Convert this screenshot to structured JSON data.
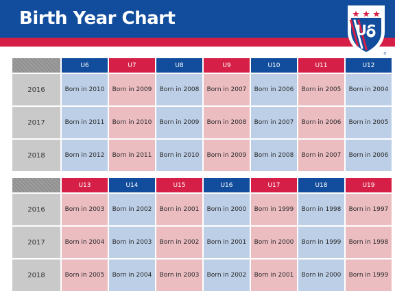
{
  "header": {
    "title": "Birth Year Chart"
  },
  "colors": {
    "header_blue": "#114d9c",
    "accent_red": "#d61f46",
    "cell_blue": "#bccfe7",
    "cell_red": "#ebbcc0",
    "year_gray": "#c9c9c9"
  },
  "crest": {
    "logo_text": "US",
    "icon": "us-soccer-crest-icon"
  },
  "tables": [
    {
      "columns": [
        "U6",
        "U7",
        "U8",
        "U9",
        "U10",
        "U11",
        "U12"
      ],
      "column_colors": [
        "blue",
        "red",
        "blue",
        "red",
        "blue",
        "red",
        "blue"
      ],
      "rows": [
        {
          "year": "2016",
          "cells": [
            "Born in 2010",
            "Born in 2009",
            "Born in 2008",
            "Born in 2007",
            "Born in 2006",
            "Born in 2005",
            "Born in 2004"
          ]
        },
        {
          "year": "2017",
          "cells": [
            "Born in 2011",
            "Born in 2010",
            "Born in 2009",
            "Born in 2008",
            "Born in 2007",
            "Born in 2006",
            "Born in 2005"
          ]
        },
        {
          "year": "2018",
          "cells": [
            "Born in 2012",
            "Born in 2011",
            "Born in 2010",
            "Born in 2009",
            "Born in 2008",
            "Born in 2007",
            "Born in 2006"
          ]
        }
      ]
    },
    {
      "columns": [
        "U13",
        "U14",
        "U15",
        "U16",
        "U17",
        "U18",
        "U19"
      ],
      "column_colors": [
        "red",
        "blue",
        "red",
        "blue",
        "red",
        "blue",
        "red"
      ],
      "rows": [
        {
          "year": "2016",
          "cells": [
            "Born in 2003",
            "Born in 2002",
            "Born in 2001",
            "Born in 2000",
            "Born in 1999",
            "Born in 1998",
            "Born in 1997"
          ]
        },
        {
          "year": "2017",
          "cells": [
            "Born in 2004",
            "Born in 2003",
            "Born in 2002",
            "Born in 2001",
            "Born in 2000",
            "Born in 1999",
            "Born in 1998"
          ]
        },
        {
          "year": "2018",
          "cells": [
            "Born in 2005",
            "Born in 2004",
            "Born in 2003",
            "Born in 2002",
            "Born in 2001",
            "Born in 2000",
            "Born in 1999"
          ]
        }
      ]
    }
  ]
}
